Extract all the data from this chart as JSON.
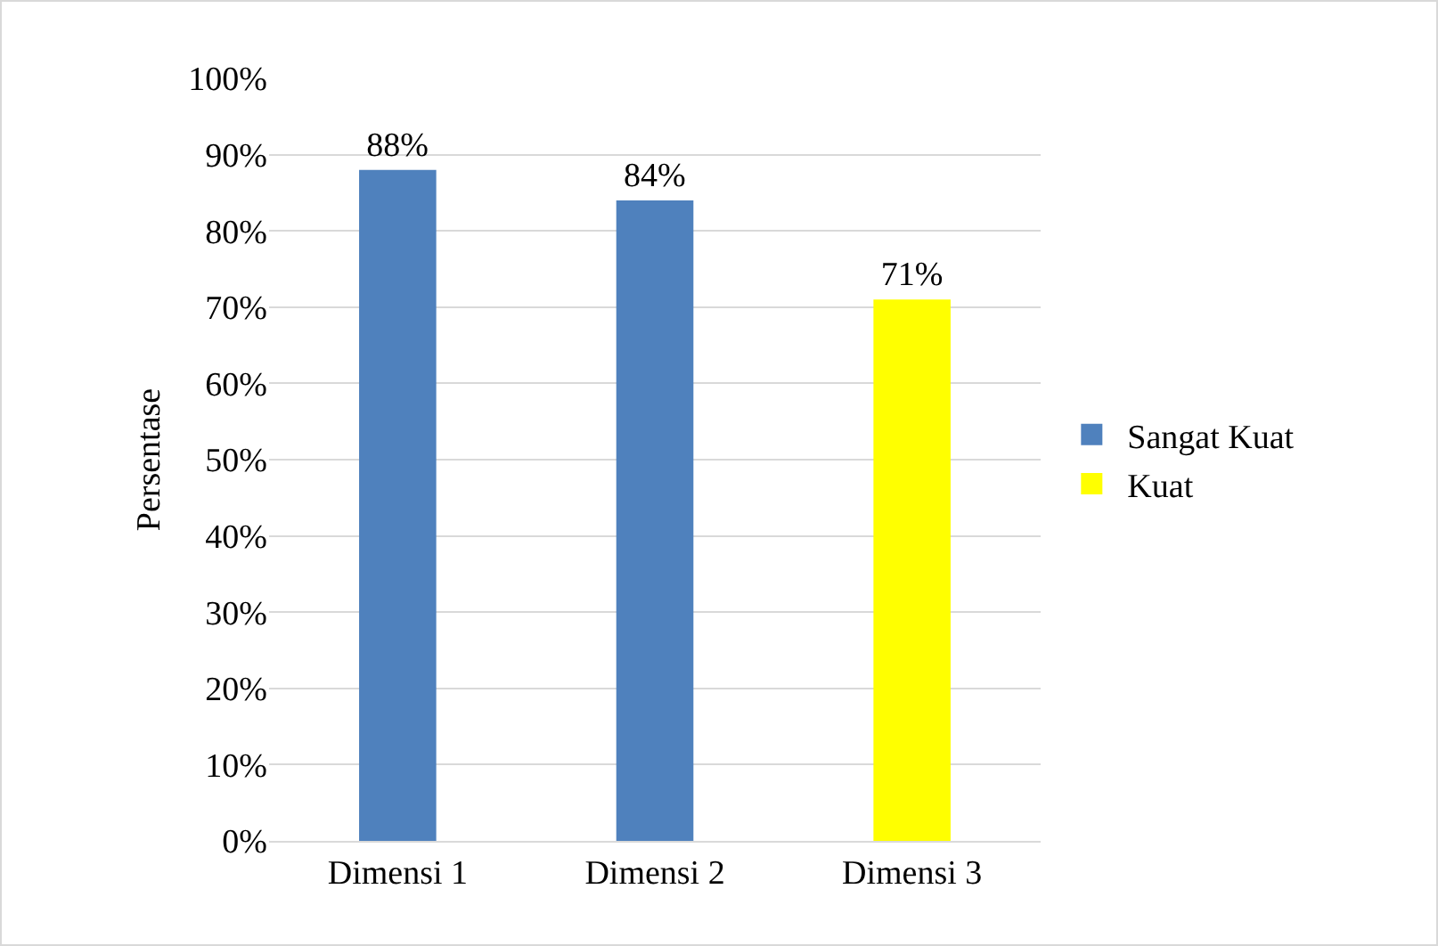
{
  "chart_data": {
    "type": "bar",
    "ylabel": "Persentase",
    "categories": [
      "Dimensi 1",
      "Dimensi 2",
      "Dimensi 3"
    ],
    "series": [
      {
        "name": "Sangat Kuat",
        "color": "#4f81bd",
        "values": [
          88,
          84,
          null
        ],
        "value_labels": [
          "88%",
          "84%",
          null
        ]
      },
      {
        "name": "Kuat",
        "color": "#ffff00",
        "values": [
          null,
          null,
          71
        ],
        "value_labels": [
          null,
          null,
          "71%"
        ]
      }
    ],
    "ylim": [
      0,
      100
    ],
    "yticks": [
      {
        "value": 0,
        "label": "0%"
      },
      {
        "value": 10,
        "label": "10%"
      },
      {
        "value": 20,
        "label": "20%"
      },
      {
        "value": 30,
        "label": "30%"
      },
      {
        "value": 40,
        "label": "40%"
      },
      {
        "value": 50,
        "label": "50%"
      },
      {
        "value": 60,
        "label": "60%"
      },
      {
        "value": 70,
        "label": "70%"
      },
      {
        "value": 80,
        "label": "80%"
      },
      {
        "value": 90,
        "label": "90%"
      },
      {
        "value": 100,
        "label": "100%"
      }
    ],
    "grid": "y",
    "legend": "right"
  }
}
